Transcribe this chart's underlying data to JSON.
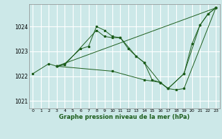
{
  "title": "Graphe pression niveau de la mer (hPa)",
  "background_color": "#cce8e8",
  "grid_color": "#ffffff",
  "line_color": "#1a5c1a",
  "xlim": [
    -0.5,
    23.5
  ],
  "ylim": [
    1020.7,
    1024.9
  ],
  "yticks": [
    1021,
    1022,
    1023,
    1024
  ],
  "xticks": [
    0,
    1,
    2,
    3,
    4,
    5,
    6,
    7,
    8,
    9,
    10,
    11,
    12,
    13,
    14,
    15,
    16,
    17,
    18,
    19,
    20,
    21,
    22,
    23
  ],
  "series": [
    {
      "x": [
        0,
        2,
        3,
        4,
        6,
        7,
        8,
        9,
        10,
        11,
        12,
        13,
        14,
        15,
        16,
        17,
        19,
        20,
        21,
        22,
        23
      ],
      "y": [
        1022.1,
        1022.5,
        1022.4,
        1022.5,
        1023.1,
        1023.2,
        1024.0,
        1023.85,
        1023.6,
        1023.55,
        1023.1,
        1022.8,
        1022.55,
        1021.85,
        1021.75,
        1021.5,
        1022.1,
        1023.3,
        1024.05,
        1024.5,
        1024.75
      ]
    },
    {
      "x": [
        3,
        4,
        8,
        9,
        10,
        11,
        13,
        14,
        16,
        17,
        19,
        21,
        22,
        23
      ],
      "y": [
        1022.4,
        1022.45,
        1023.85,
        1023.6,
        1023.55,
        1023.55,
        1022.8,
        1022.55,
        1021.75,
        1021.5,
        1022.1,
        1024.05,
        1024.5,
        1024.75
      ]
    },
    {
      "x": [
        3,
        23
      ],
      "y": [
        1022.4,
        1024.75
      ]
    },
    {
      "x": [
        3,
        10,
        14,
        16,
        17,
        18,
        19,
        23
      ],
      "y": [
        1022.4,
        1022.2,
        1021.85,
        1021.75,
        1021.5,
        1021.45,
        1021.5,
        1024.75
      ]
    }
  ]
}
